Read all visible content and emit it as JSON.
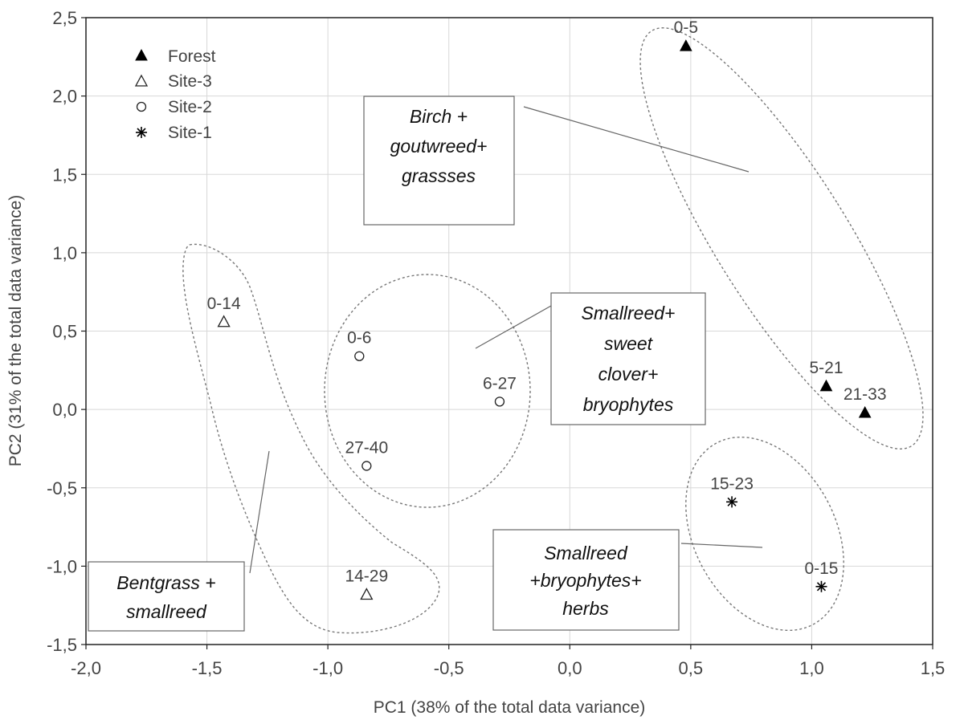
{
  "chart_data": {
    "type": "scatter",
    "xlabel": "PC1 (38% of the total data variance)",
    "ylabel": "PC2 (31% of the total data variance)",
    "xlim": [
      -2.0,
      1.5
    ],
    "ylim": [
      -1.5,
      2.5
    ],
    "x_ticks": [
      -2.0,
      -1.5,
      -1.0,
      -0.5,
      0.0,
      0.5,
      1.0,
      1.5
    ],
    "y_ticks": [
      -1.5,
      -1.0,
      -0.5,
      0.0,
      0.5,
      1.0,
      1.5,
      2.0,
      2.5
    ],
    "x_tick_labels": [
      "-2,0",
      "-1,5",
      "-1,0",
      "-0,5",
      "0,0",
      "0,5",
      "1,0",
      "1,5"
    ],
    "y_tick_labels": [
      "-1,5",
      "-1,0",
      "-0,5",
      "0,0",
      "0,5",
      "1,0",
      "1,5",
      "2,0",
      "2,5"
    ],
    "grid": true,
    "legend_position": "top-left",
    "series": [
      {
        "name": "Forest",
        "marker": "filled-triangle",
        "points": [
          {
            "x": 0.48,
            "y": 2.32,
            "label": "0-5"
          },
          {
            "x": 1.06,
            "y": 0.15,
            "label": "5-21"
          },
          {
            "x": 1.22,
            "y": -0.02,
            "label": "21-33"
          }
        ]
      },
      {
        "name": "Site-3",
        "marker": "open-triangle",
        "points": [
          {
            "x": -1.43,
            "y": 0.56,
            "label": "0-14"
          },
          {
            "x": -0.84,
            "y": -1.18,
            "label": "14-29"
          }
        ]
      },
      {
        "name": "Site-2",
        "marker": "open-circle",
        "points": [
          {
            "x": -0.87,
            "y": 0.34,
            "label": "0-6"
          },
          {
            "x": -0.29,
            "y": 0.05,
            "label": "6-27"
          },
          {
            "x": -0.84,
            "y": -0.36,
            "label": "27-40"
          }
        ]
      },
      {
        "name": "Site-1",
        "marker": "asterisk",
        "points": [
          {
            "x": 0.67,
            "y": -0.59,
            "label": "15-23"
          },
          {
            "x": 1.04,
            "y": -1.13,
            "label": "0-15"
          }
        ]
      }
    ],
    "annotations": [
      {
        "lines": [
          "Birch +",
          "goutwreed+",
          "grassses"
        ]
      },
      {
        "lines": [
          "Smallreed+",
          "sweet",
          "clover+",
          "bryophytes"
        ]
      },
      {
        "lines": [
          "Smallreed",
          "+bryophytes+",
          "herbs"
        ]
      },
      {
        "lines": [
          "Bentgrass +",
          "smallreed"
        ]
      }
    ]
  }
}
